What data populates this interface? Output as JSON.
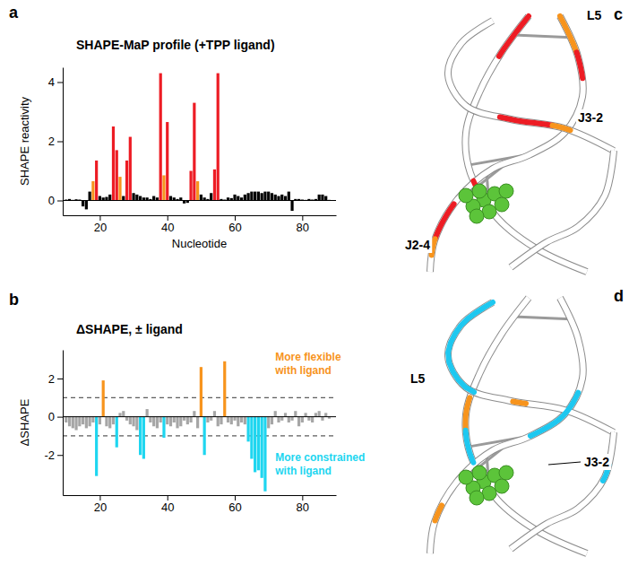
{
  "chart_data": [
    {
      "type": "bar",
      "panel": "a",
      "title": "SHAPE-MaP profile (+TPP ligand)",
      "x_label": "Nucleotide",
      "y_label": "SHAPE reactivity",
      "x": [
        10,
        11,
        12,
        13,
        14,
        15,
        16,
        17,
        18,
        19,
        20,
        21,
        22,
        23,
        24,
        25,
        26,
        27,
        28,
        29,
        30,
        31,
        32,
        33,
        34,
        35,
        36,
        37,
        38,
        39,
        40,
        41,
        42,
        43,
        44,
        45,
        46,
        47,
        48,
        49,
        50,
        51,
        52,
        53,
        54,
        55,
        56,
        57,
        58,
        59,
        60,
        61,
        62,
        63,
        64,
        65,
        66,
        67,
        68,
        69,
        70,
        71,
        72,
        73,
        74,
        75,
        76,
        77,
        78,
        79,
        80,
        81,
        82,
        83,
        84,
        85,
        86,
        87,
        88
      ],
      "values": [
        0.03,
        0.05,
        0.02,
        0.04,
        0.03,
        -0.2,
        -0.3,
        0.3,
        0.65,
        1.35,
        0.15,
        0.1,
        0.12,
        0.2,
        2.5,
        1.7,
        0.8,
        0.15,
        1.35,
        2.15,
        0.25,
        0.2,
        0.15,
        0.1,
        0.1,
        0.05,
        0.15,
        0.1,
        4.3,
        0.85,
        2.65,
        0.15,
        0.1,
        0.05,
        0.1,
        -0.1,
        -0.08,
        1.0,
        3.3,
        0.65,
        0.2,
        0.1,
        0.05,
        0.25,
        1.05,
        4.3,
        0.05,
        0.03,
        0.1,
        0.08,
        0.2,
        0.15,
        0.1,
        0.2,
        0.25,
        0.3,
        0.3,
        0.3,
        0.25,
        0.3,
        0.3,
        0.25,
        0.2,
        0.15,
        0.2,
        0.15,
        0.3,
        -0.35,
        0.05,
        0.05,
        0.03,
        0.02,
        0.05,
        0.03,
        0.05,
        0.2,
        0.2,
        0.15,
        0.02
      ],
      "colors": [
        "#000000",
        "#000000",
        "#000000",
        "#000000",
        "#000000",
        "#000000",
        "#000000",
        "#000000",
        "#f7941d",
        "#ed1c24",
        "#000000",
        "#000000",
        "#000000",
        "#000000",
        "#ed1c24",
        "#ed1c24",
        "#f7941d",
        "#000000",
        "#ed1c24",
        "#ed1c24",
        "#000000",
        "#000000",
        "#000000",
        "#000000",
        "#000000",
        "#000000",
        "#000000",
        "#000000",
        "#ed1c24",
        "#f7941d",
        "#ed1c24",
        "#000000",
        "#000000",
        "#000000",
        "#000000",
        "#000000",
        "#000000",
        "#ed1c24",
        "#ed1c24",
        "#f7941d",
        "#000000",
        "#000000",
        "#000000",
        "#000000",
        "#ed1c24",
        "#ed1c24",
        "#000000",
        "#000000",
        "#000000",
        "#000000",
        "#000000",
        "#000000",
        "#000000",
        "#000000",
        "#000000",
        "#000000",
        "#000000",
        "#000000",
        "#000000",
        "#000000",
        "#000000",
        "#000000",
        "#000000",
        "#000000",
        "#000000",
        "#000000",
        "#000000",
        "#000000",
        "#000000",
        "#000000",
        "#000000",
        "#000000",
        "#000000",
        "#000000",
        "#000000",
        "#000000",
        "#000000",
        "#000000",
        "#000000"
      ],
      "xlim": [
        9,
        90
      ],
      "xticks": [
        20,
        40,
        60,
        80
      ],
      "ylim": [
        -0.5,
        4.5
      ],
      "yticks": [
        0,
        2,
        4
      ],
      "grid": false
    },
    {
      "type": "bar",
      "panel": "b",
      "title": "ΔSHAPE, ± ligand",
      "y_label": "ΔSHAPE",
      "x": [
        10,
        11,
        12,
        13,
        14,
        15,
        16,
        17,
        18,
        19,
        20,
        21,
        22,
        23,
        24,
        25,
        26,
        27,
        28,
        29,
        30,
        31,
        32,
        33,
        34,
        35,
        36,
        37,
        38,
        39,
        40,
        41,
        42,
        43,
        44,
        45,
        46,
        47,
        48,
        49,
        50,
        51,
        52,
        53,
        54,
        55,
        56,
        57,
        58,
        59,
        60,
        61,
        62,
        63,
        64,
        65,
        66,
        67,
        68,
        69,
        70,
        71,
        72,
        73,
        74,
        75,
        76,
        77,
        78,
        79,
        80,
        81,
        82,
        83,
        84,
        85,
        86,
        87,
        88
      ],
      "values": [
        -0.3,
        -0.5,
        -0.6,
        -0.7,
        -0.5,
        -0.4,
        -0.6,
        -0.5,
        -0.3,
        -3.1,
        -0.4,
        1.9,
        -0.5,
        -0.6,
        -0.4,
        -1.6,
        0.2,
        0.3,
        -0.2,
        -0.4,
        -0.5,
        -0.7,
        -2.0,
        -2.2,
        0.4,
        -0.3,
        -0.5,
        -0.6,
        -0.3,
        -1.1,
        -0.4,
        -0.5,
        -0.3,
        -0.6,
        -0.5,
        -0.2,
        -0.4,
        -0.3,
        0.3,
        -0.6,
        2.6,
        -2.0,
        -0.3,
        -0.2,
        0.3,
        -0.5,
        -0.4,
        2.9,
        -0.3,
        -0.4,
        -0.2,
        -0.5,
        -0.3,
        -0.4,
        -1.3,
        -2.2,
        -2.9,
        -2.8,
        -3.2,
        -3.9,
        -0.6,
        -0.4,
        0.3,
        -0.3,
        -0.2,
        0.2,
        -0.3,
        -0.2,
        0.3,
        -0.5,
        -0.3,
        0.2,
        -0.2,
        -0.3,
        0.2,
        0.3,
        -0.2,
        0.2,
        -0.1
      ],
      "colors": [
        "#a6a6a6",
        "#a6a6a6",
        "#a6a6a6",
        "#a6a6a6",
        "#a6a6a6",
        "#a6a6a6",
        "#a6a6a6",
        "#a6a6a6",
        "#a6a6a6",
        "#1ed6f0",
        "#a6a6a6",
        "#f7941d",
        "#a6a6a6",
        "#a6a6a6",
        "#a6a6a6",
        "#1ed6f0",
        "#a6a6a6",
        "#a6a6a6",
        "#a6a6a6",
        "#a6a6a6",
        "#a6a6a6",
        "#a6a6a6",
        "#1ed6f0",
        "#1ed6f0",
        "#a6a6a6",
        "#a6a6a6",
        "#a6a6a6",
        "#a6a6a6",
        "#a6a6a6",
        "#1ed6f0",
        "#a6a6a6",
        "#a6a6a6",
        "#a6a6a6",
        "#a6a6a6",
        "#a6a6a6",
        "#a6a6a6",
        "#a6a6a6",
        "#a6a6a6",
        "#a6a6a6",
        "#a6a6a6",
        "#f7941d",
        "#1ed6f0",
        "#a6a6a6",
        "#a6a6a6",
        "#a6a6a6",
        "#a6a6a6",
        "#a6a6a6",
        "#f7941d",
        "#a6a6a6",
        "#a6a6a6",
        "#a6a6a6",
        "#a6a6a6",
        "#a6a6a6",
        "#a6a6a6",
        "#1ed6f0",
        "#1ed6f0",
        "#1ed6f0",
        "#1ed6f0",
        "#1ed6f0",
        "#1ed6f0",
        "#a6a6a6",
        "#a6a6a6",
        "#a6a6a6",
        "#a6a6a6",
        "#a6a6a6",
        "#a6a6a6",
        "#a6a6a6",
        "#a6a6a6",
        "#a6a6a6",
        "#a6a6a6",
        "#a6a6a6",
        "#a6a6a6",
        "#a6a6a6",
        "#a6a6a6",
        "#a6a6a6",
        "#a6a6a6",
        "#a6a6a6",
        "#a6a6a6",
        "#a6a6a6"
      ],
      "xlim": [
        9,
        90
      ],
      "xticks": [
        20,
        40,
        60,
        80
      ],
      "ylim": [
        -4.1,
        3.5
      ],
      "yticks": [
        -2,
        0,
        2
      ],
      "grid": false,
      "threshold_lines": [
        -1,
        1
      ],
      "annotations": [
        {
          "lines": [
            "More flexible",
            "with ligand"
          ],
          "color": "#f7941d"
        },
        {
          "lines": [
            "More constrained",
            "with ligand"
          ],
          "color": "#1ed6f0"
        }
      ]
    }
  ],
  "structures": [
    {
      "panel": "c",
      "labels": [
        "L5",
        "J3-2",
        "J2-4"
      ]
    },
    {
      "panel": "d",
      "labels": [
        "L5",
        "J3-2"
      ]
    }
  ]
}
